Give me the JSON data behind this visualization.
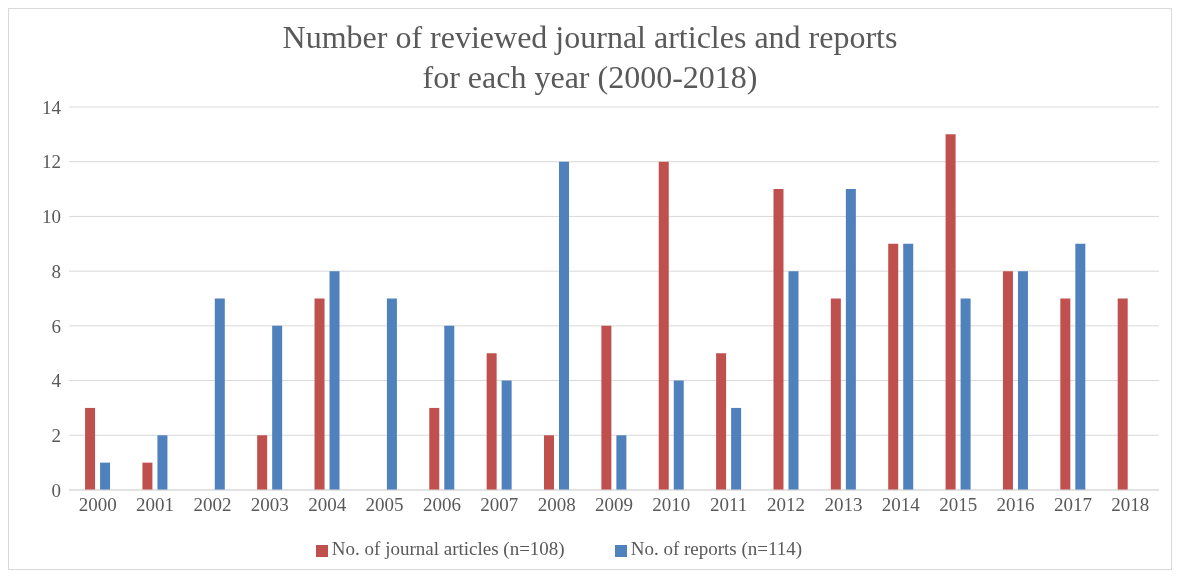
{
  "chart_data": {
    "type": "bar",
    "title": "Number of reviewed journal articles and reports\nfor each year (2000-2018)",
    "categories": [
      "2000",
      "2001",
      "2002",
      "2003",
      "2004",
      "2005",
      "2006",
      "2007",
      "2008",
      "2009",
      "2010",
      "2011",
      "2012",
      "2013",
      "2014",
      "2015",
      "2016",
      "2017",
      "2018"
    ],
    "series": [
      {
        "name": "No. of journal articles (n=108)",
        "color": "#c0504d",
        "values": [
          3,
          1,
          0,
          2,
          7,
          0,
          3,
          5,
          2,
          6,
          12,
          5,
          11,
          7,
          9,
          13,
          8,
          7,
          7
        ]
      },
      {
        "name": "No. of reports (n=114)",
        "color": "#4f81bd",
        "values": [
          1,
          2,
          7,
          6,
          8,
          7,
          6,
          4,
          12,
          2,
          4,
          3,
          8,
          11,
          9,
          7,
          8,
          9,
          0
        ]
      }
    ],
    "ylim": [
      0,
      14
    ],
    "yticks": [
      0,
      2,
      4,
      6,
      8,
      10,
      12,
      14
    ],
    "grid": "y",
    "legend": "bottom"
  }
}
